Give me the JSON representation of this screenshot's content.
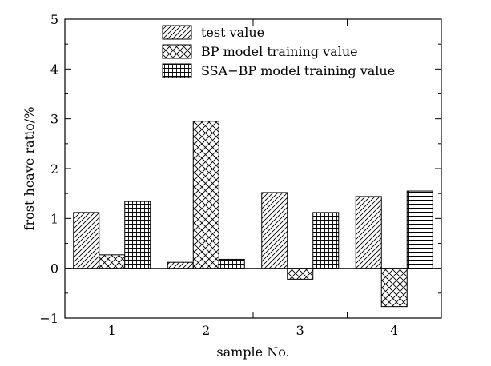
{
  "chart_data": {
    "type": "bar",
    "categories": [
      "1",
      "2",
      "3",
      "4"
    ],
    "series": [
      {
        "name": "test value",
        "pattern": "diagonal-hatch",
        "values": [
          1.12,
          0.12,
          1.52,
          1.44
        ]
      },
      {
        "name": "BP model training value",
        "pattern": "cross-hatch",
        "values": [
          0.27,
          2.95,
          -0.22,
          -0.77
        ]
      },
      {
        "name": "SSA−BP model training value",
        "pattern": "grid",
        "values": [
          1.34,
          0.18,
          1.12,
          1.55
        ]
      }
    ],
    "xlabel": "sample No.",
    "ylabel": "frost heave ratio/%",
    "ylim": [
      -1,
      5
    ],
    "yticks": [
      "−1",
      "0",
      "1",
      "2",
      "3",
      "4",
      "5"
    ],
    "legend_position": "top",
    "grid": false,
    "zero_line": true
  }
}
